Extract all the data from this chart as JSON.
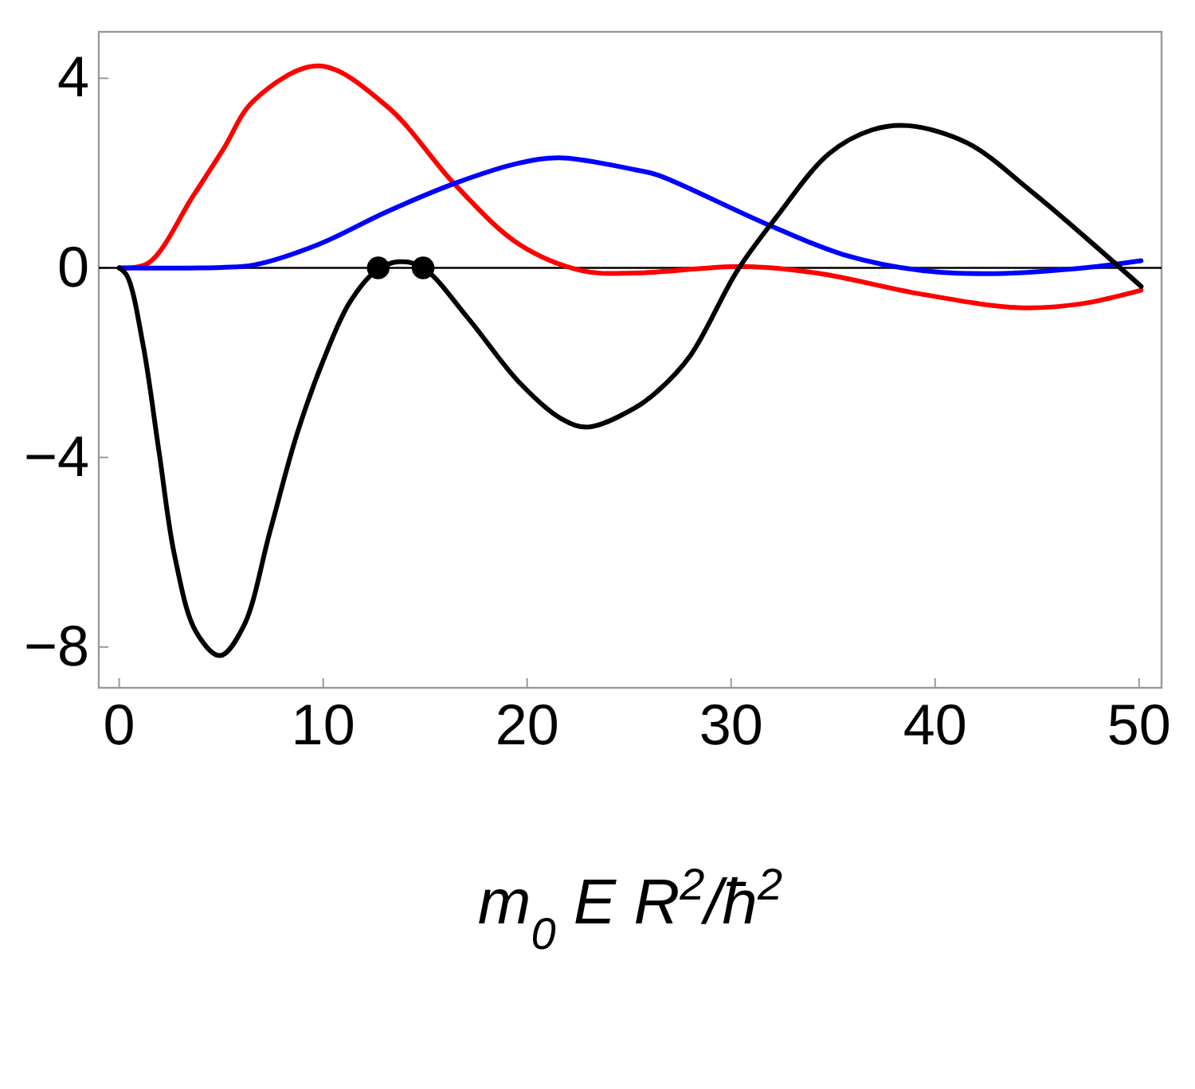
{
  "chart_data": {
    "type": "line",
    "xlabel": "m$_{0}$ E R$^{2}$/ħ$^{2}$",
    "xlim": [
      -1,
      51.1
    ],
    "ylim": [
      -8.86,
      4.98
    ],
    "xticks": [
      0,
      10,
      20,
      30,
      40,
      50
    ],
    "yticks": [
      {
        "value": -8,
        "label": "−8"
      },
      {
        "value": -4,
        "label": "−4"
      },
      0,
      4
    ],
    "grid": false,
    "line_style": "solid",
    "ref_lines": [
      {
        "axis": "y",
        "value": 0,
        "color": "#000000"
      }
    ],
    "series": [
      {
        "color": "#ff0000",
        "x": [
          0,
          1.43,
          3.6,
          5.1,
          6.6,
          9.77,
          13.1,
          16.5,
          19.6,
          22.7,
          25.3,
          30.6,
          34.2,
          39.4,
          44.1,
          47.3,
          50.1
        ],
        "values": [
          0,
          0.1,
          1.5,
          2.5,
          3.53,
          4.26,
          3.42,
          1.74,
          0.5,
          -0.06,
          -0.11,
          0.03,
          -0.11,
          -0.56,
          -0.84,
          -0.75,
          -0.47
        ]
      },
      {
        "color": "#0000ff",
        "x": [
          0,
          5,
          6.6,
          9.8,
          13.1,
          16.5,
          19.6,
          21.6,
          25.3,
          26.4,
          31.6,
          35.5,
          39.4,
          43,
          47.3,
          50.1
        ],
        "values": [
          0,
          0.01,
          0.06,
          0.5,
          1.18,
          1.79,
          2.21,
          2.32,
          2.07,
          1.96,
          0.95,
          0.28,
          -0.06,
          -0.12,
          0,
          0.15
        ]
      },
      {
        "color": "#000000",
        "x": [
          0,
          0.39,
          1.17,
          1.95,
          2.73,
          3.77,
          4.95,
          6.1,
          7.4,
          8.7,
          10,
          11.3,
          12.6,
          13.7,
          14.9,
          17.1,
          19.6,
          21.7,
          23,
          25.3,
          26.4,
          28,
          30.3,
          32.2,
          34.8,
          36.9,
          38.7,
          41.6,
          44.7,
          47.3,
          50.1
        ],
        "values": [
          0,
          -0.17,
          -1.62,
          -3.87,
          -6.1,
          -7.68,
          -8.18,
          -7.56,
          -5.55,
          -3.53,
          -1.96,
          -0.73,
          -0.06,
          0.13,
          0,
          -1.06,
          -2.41,
          -3.19,
          -3.36,
          -2.95,
          -2.6,
          -1.85,
          -0.06,
          1.06,
          2.41,
          2.91,
          3,
          2.63,
          1.62,
          0.67,
          -0.39
        ]
      },
      {
        "type": "scatter",
        "marker": "circle",
        "color": "#000000",
        "x": [
          12.7,
          14.9
        ],
        "values": [
          0,
          0
        ]
      }
    ]
  }
}
